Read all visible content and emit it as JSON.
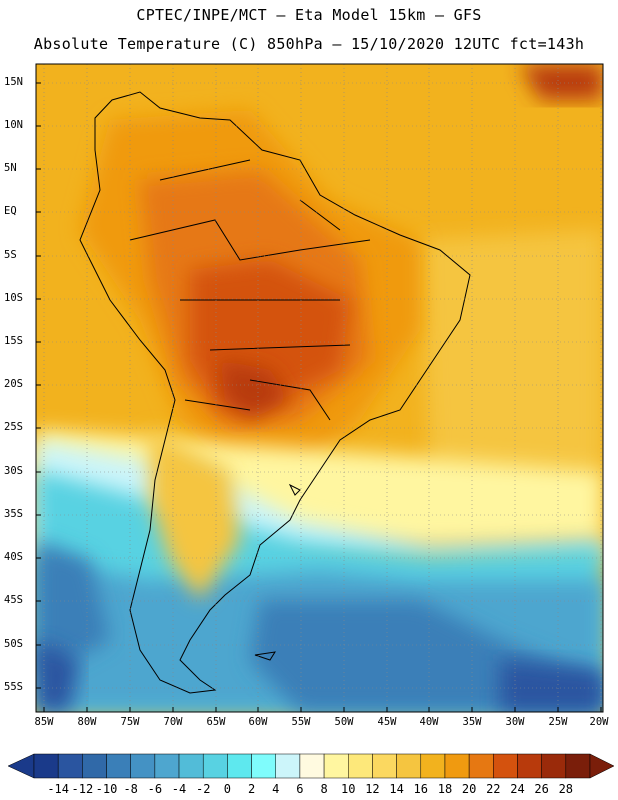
{
  "title": {
    "line1": "CPTEC/INPE/MCT –  Eta Model 15km – GFS",
    "line2": "Absolute Temperature (C) 850hPa – 15/10/2020 12UTC fct=143h"
  },
  "map": {
    "lat_labels": [
      "15N",
      "10N",
      "5N",
      "EQ",
      "5S",
      "10S",
      "15S",
      "20S",
      "25S",
      "30S",
      "35S",
      "40S",
      "45S",
      "50S",
      "55S"
    ],
    "lon_labels": [
      "85W",
      "80W",
      "75W",
      "70W",
      "65W",
      "60W",
      "55W",
      "50W",
      "45W",
      "40W",
      "35W",
      "30W",
      "25W",
      "20W"
    ]
  },
  "colorbar": {
    "labels": [
      "-14",
      "-12",
      "-10",
      "-8",
      "-6",
      "-4",
      "-2",
      "0",
      "2",
      "4",
      "6",
      "8",
      "10",
      "12",
      "14",
      "16",
      "18",
      "20",
      "22",
      "24",
      "26",
      "28"
    ],
    "colors": [
      "#1a3a8a",
      "#2a55a0",
      "#3069a8",
      "#3a7fb8",
      "#4492c4",
      "#4ea6cf",
      "#52bcd8",
      "#58d2e2",
      "#5ee8ee",
      "#7ffcfc",
      "#ccf5fa",
      "#fffae0",
      "#fff6a0",
      "#fde87a",
      "#fbd860",
      "#f5c540",
      "#f2b21e",
      "#f09a10",
      "#e67812",
      "#d4520e",
      "#b83a0c",
      "#9a2a0a",
      "#7a1e0a"
    ]
  }
}
